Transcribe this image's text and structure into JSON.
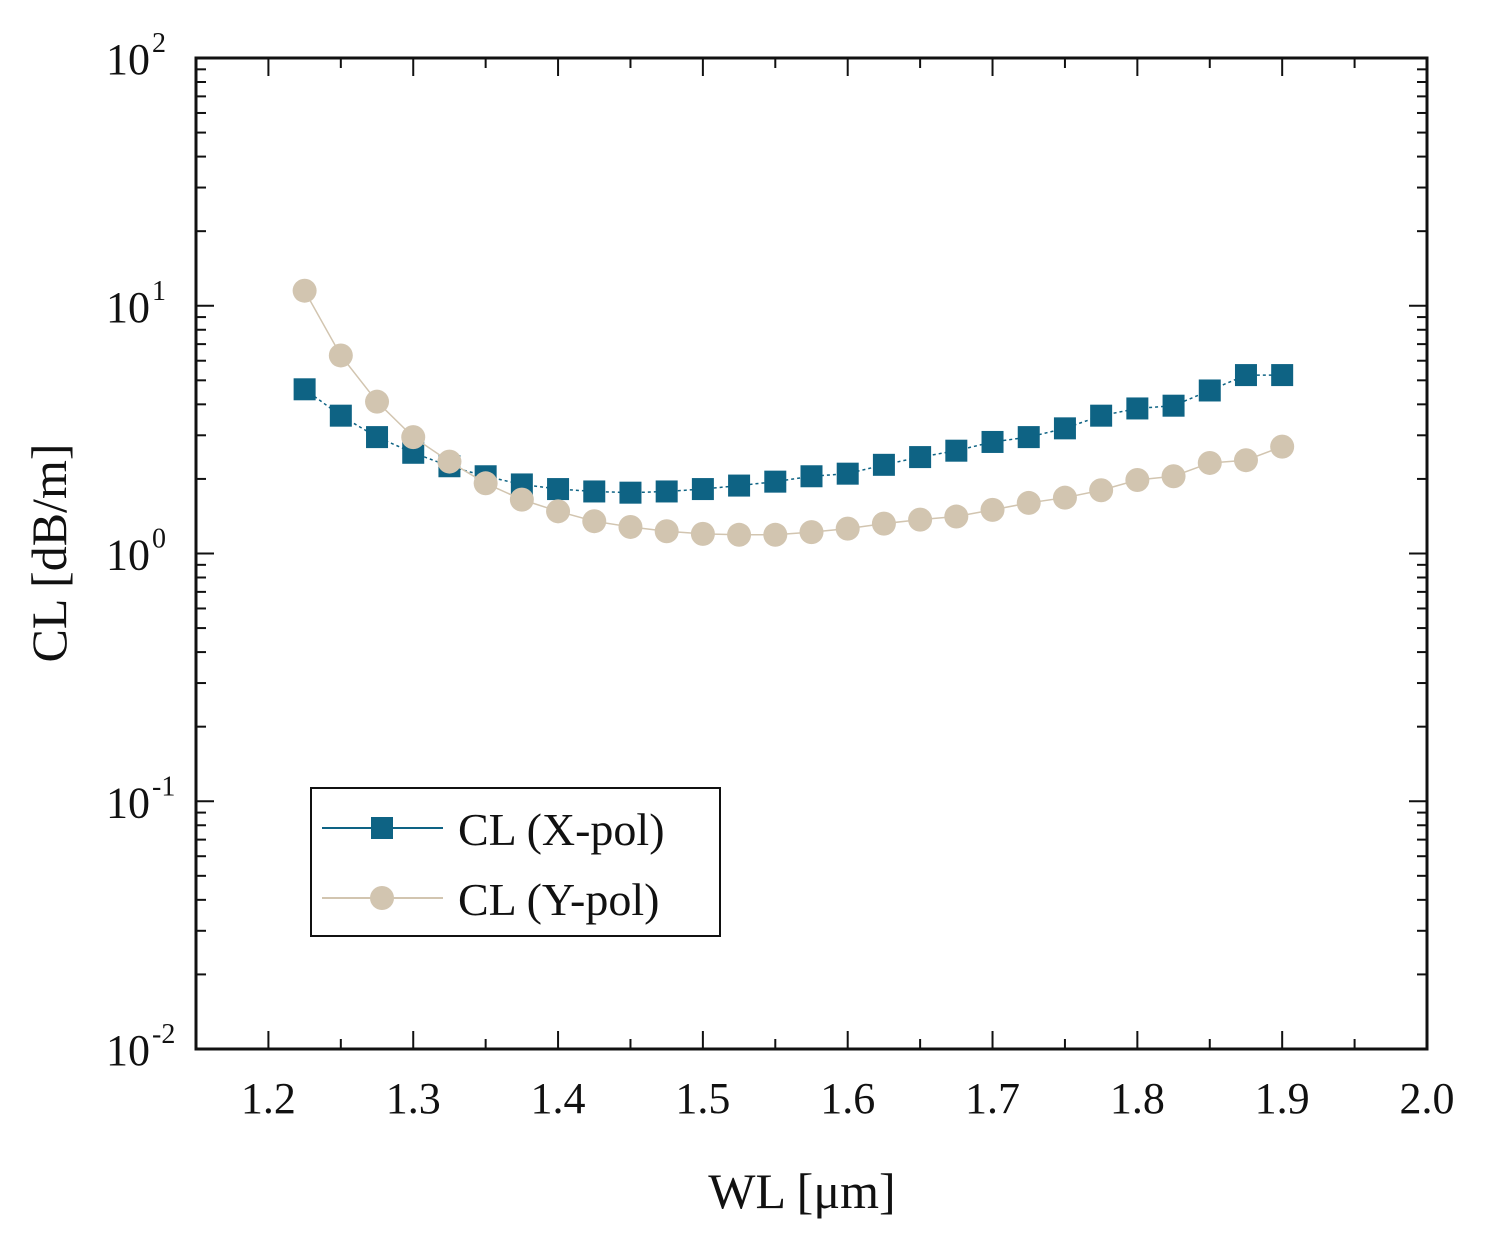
{
  "chart_data": {
    "type": "line",
    "title": "",
    "xlabel": "WL  [μm]",
    "ylabel": "CL [dB/m]",
    "xlim": [
      1.15,
      2.0
    ],
    "ylim": [
      0.01,
      100
    ],
    "yscale": "log",
    "xticks": [
      "1.2",
      "1.3",
      "1.4",
      "1.5",
      "1.6",
      "1.7",
      "1.8",
      "1.9",
      "2.0"
    ],
    "yticks": [
      {
        "base": "10",
        "exp": "-2"
      },
      {
        "base": "10",
        "exp": "-1"
      },
      {
        "base": "10",
        "exp": "0"
      },
      {
        "base": "10",
        "exp": "1"
      },
      {
        "base": "10",
        "exp": "2"
      }
    ],
    "legend_position": "lower-left",
    "x": [
      1.225,
      1.25,
      1.275,
      1.3,
      1.325,
      1.35,
      1.375,
      1.4,
      1.425,
      1.45,
      1.475,
      1.5,
      1.525,
      1.55,
      1.575,
      1.6,
      1.625,
      1.65,
      1.675,
      1.7,
      1.725,
      1.75,
      1.775,
      1.8,
      1.825,
      1.85,
      1.875,
      1.9
    ],
    "series": [
      {
        "name": "CL (X-pol)",
        "marker": "square",
        "color": "#0e6384",
        "values": [
          4.6,
          3.6,
          2.95,
          2.55,
          2.25,
          2.05,
          1.9,
          1.82,
          1.78,
          1.76,
          1.78,
          1.82,
          1.88,
          1.95,
          2.05,
          2.1,
          2.28,
          2.45,
          2.6,
          2.82,
          2.95,
          3.2,
          3.6,
          3.85,
          3.95,
          4.55,
          5.25,
          5.25
        ]
      },
      {
        "name": "CL (Y-pol)",
        "marker": "circle",
        "color": "#d2c5b0",
        "values": [
          11.5,
          6.3,
          4.1,
          2.95,
          2.35,
          1.92,
          1.65,
          1.48,
          1.35,
          1.28,
          1.23,
          1.2,
          1.19,
          1.19,
          1.22,
          1.26,
          1.32,
          1.37,
          1.41,
          1.5,
          1.6,
          1.68,
          1.8,
          1.98,
          2.05,
          2.32,
          2.38,
          2.7
        ]
      }
    ]
  }
}
